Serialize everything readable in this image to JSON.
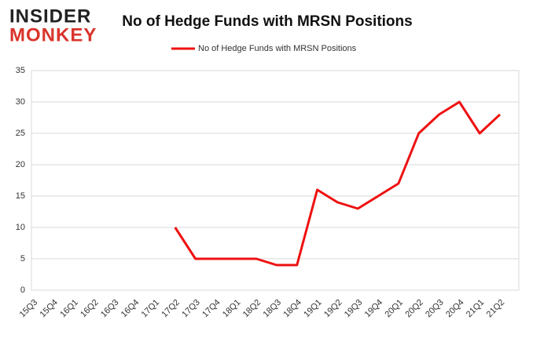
{
  "logo": {
    "top": "INSIDER",
    "bottom": "MONKEY"
  },
  "chart_data": {
    "type": "line",
    "title": "No of Hedge Funds with MRSN Positions",
    "categories": [
      "15Q3",
      "15Q4",
      "16Q1",
      "16Q2",
      "16Q3",
      "16Q4",
      "17Q1",
      "17Q2",
      "17Q3",
      "17Q4",
      "18Q1",
      "18Q2",
      "18Q3",
      "18Q4",
      "19Q1",
      "19Q2",
      "19Q3",
      "19Q4",
      "20Q1",
      "20Q2",
      "20Q3",
      "20Q4",
      "21Q1",
      "21Q2"
    ],
    "series": [
      {
        "name": "No of Hedge Funds with MRSN Positions",
        "color": "#ee1111",
        "values": [
          null,
          null,
          null,
          null,
          null,
          null,
          null,
          10,
          5,
          5,
          5,
          5,
          4,
          4,
          16,
          14,
          13,
          15,
          17,
          25,
          28,
          30,
          25,
          28
        ]
      }
    ],
    "ylim": [
      0,
      35
    ],
    "yticks": [
      0,
      5,
      10,
      15,
      20,
      25,
      30,
      35
    ],
    "grid": true,
    "legend": "top"
  }
}
